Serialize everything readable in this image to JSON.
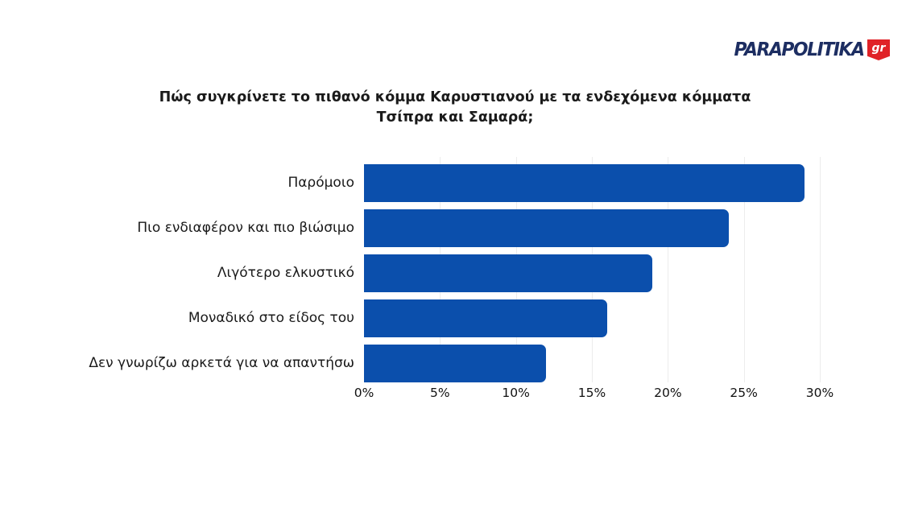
{
  "logo": {
    "text": "PARAPOLITIKA",
    "badge": "gr",
    "text_color": "#1d2e62",
    "badge_color": "#e02227"
  },
  "chart_data": {
    "type": "bar",
    "orientation": "horizontal",
    "title": "Πώς συγκρίνετε το πιθανό κόμμα Καρυστιανού με τα ενδεχόμενα κόμματα Τσίπρα και Σαμαρά;",
    "categories": [
      "Παρόμοιο",
      "Πιο ενδιαφέρον και πιο βιώσιμο",
      "Λιγότερο ελκυστικό",
      "Μοναδικό στο είδος του",
      "Δεν γνωρίζω αρκετά για να απαντήσω"
    ],
    "values": [
      29,
      24,
      19,
      16,
      12
    ],
    "unit": "%",
    "xlabel": "",
    "ylabel": "",
    "xlim": [
      0,
      30
    ],
    "xticks": [
      0,
      5,
      10,
      15,
      20,
      25,
      30
    ],
    "xtick_labels": [
      "0%",
      "5%",
      "10%",
      "15%",
      "20%",
      "25%",
      "30%"
    ],
    "bar_color": "#0b4fac",
    "grid": true,
    "gridline_color": "#ececec",
    "legend": false
  }
}
